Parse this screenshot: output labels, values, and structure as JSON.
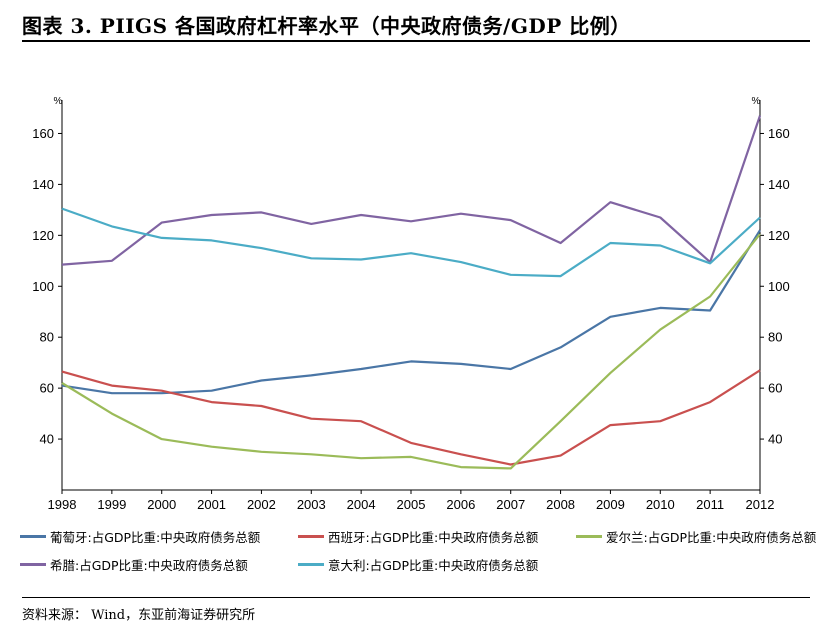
{
  "title": "图表 3.  PIIGS 各国政府杠杆率水平（中央政府债务/GDP 比例）",
  "source": "资料来源： Wind，东亚前海证券研究所",
  "chart_data": {
    "type": "line",
    "title": "PIIGS 各国政府杠杆率水平（中央政府债务/GDP 比例）",
    "y_unit_left": "%",
    "y_unit_right": "%",
    "ylim": [
      20,
      170
    ],
    "yticks": [
      40,
      60,
      80,
      100,
      120,
      140,
      160
    ],
    "grid": false,
    "legend_position": "bottom",
    "x": [
      "1998",
      "1999",
      "2000",
      "2001",
      "2002",
      "2003",
      "2004",
      "2005",
      "2006",
      "2007",
      "2008",
      "2009",
      "2010",
      "2011",
      "2012"
    ],
    "series": [
      {
        "name": "葡萄牙:占GDP比重:中央政府债务总额",
        "color": "#4a76a6",
        "values": [
          61,
          58,
          58,
          59,
          63,
          65,
          67.5,
          70.5,
          69.5,
          67.5,
          76,
          88,
          91.5,
          90.5,
          122
        ]
      },
      {
        "name": "西班牙:占GDP比重:中央政府债务总额",
        "color": "#c9504f",
        "values": [
          66.5,
          61,
          59,
          54.5,
          53,
          48,
          47,
          38.5,
          34,
          30,
          33.5,
          45.5,
          47,
          54.5,
          67
        ]
      },
      {
        "name": "爱尔兰:占GDP比重:中央政府债务总额",
        "color": "#9bbb59",
        "values": [
          62,
          50,
          40,
          37,
          35,
          34,
          32.5,
          33,
          29,
          28.5,
          47,
          66,
          83,
          96,
          120.5
        ]
      },
      {
        "name": "希腊:占GDP比重:中央政府债务总额",
        "color": "#8064a2",
        "values": [
          108.5,
          110,
          125,
          128,
          129,
          124.5,
          128,
          125.5,
          128.5,
          126,
          117,
          133,
          127,
          109.5,
          167
        ]
      },
      {
        "name": "意大利:占GDP比重:中央政府债务总额",
        "color": "#4bacc6",
        "values": [
          130.5,
          123.5,
          119,
          118,
          115,
          111,
          110.5,
          113,
          109.5,
          104.5,
          104,
          117,
          116,
          109,
          127
        ]
      }
    ]
  }
}
